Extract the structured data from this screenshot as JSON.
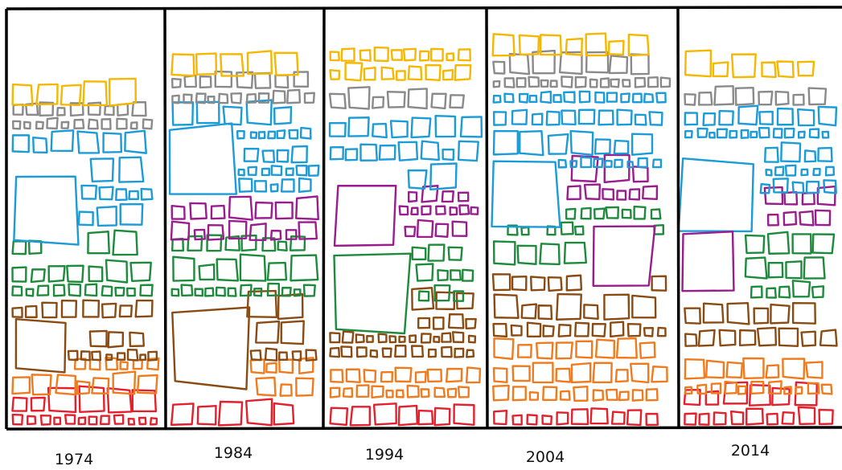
{
  "columns": [
    {
      "label": "1974"
    },
    {
      "label": "1984"
    },
    {
      "label": "1994"
    },
    {
      "label": "2004"
    },
    {
      "label": "2014"
    }
  ]
}
